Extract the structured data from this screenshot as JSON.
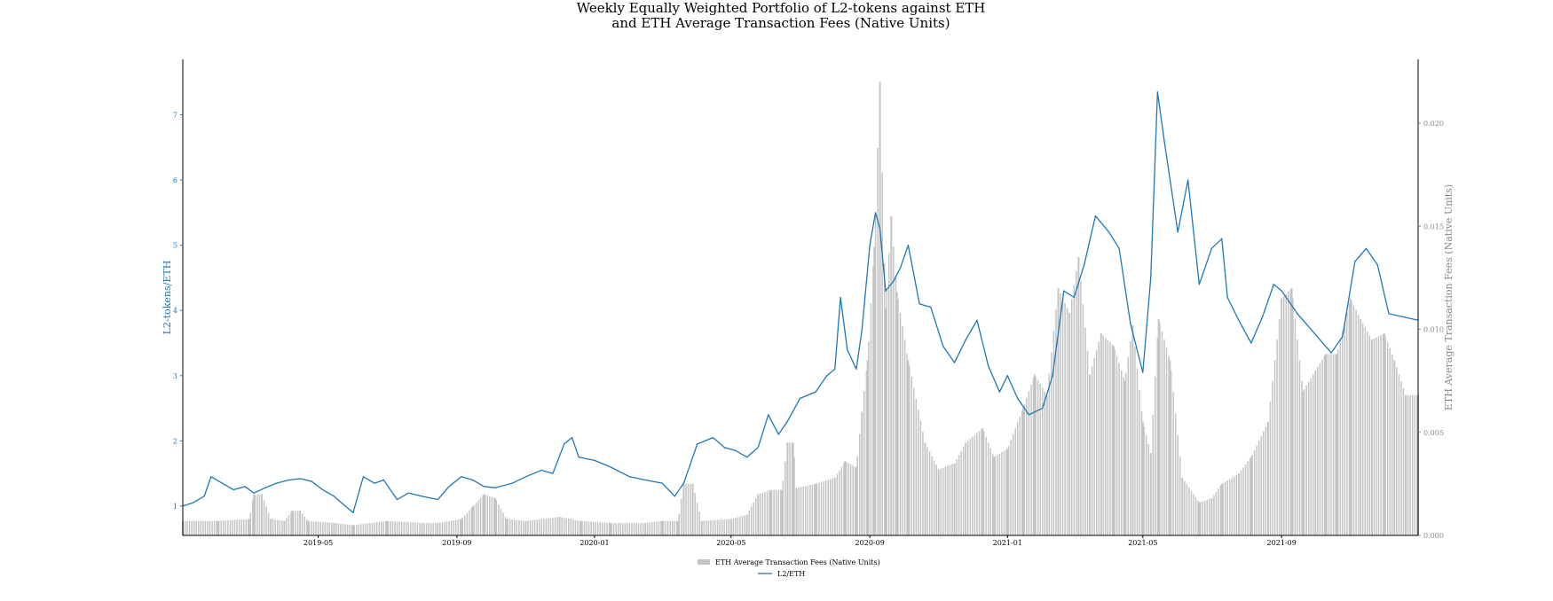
{
  "chart_data": {
    "type": "bar+line",
    "title_lines": [
      "Weekly Equally Weighted Portfolio of L2-tokens against ETH",
      "and ETH Average Transaction Fees (Native Units)"
    ],
    "ylabel_left": "L2-tokens/ETH",
    "ylabel_right": "ETH Average Transaction Fees (Native Units)",
    "x_range": [
      "2019-01-01",
      "2021-12-31"
    ],
    "ylim_left": [
      0.55,
      7.85
    ],
    "ylim_right": [
      0.0,
      0.0231
    ],
    "left_ticks": [
      "1",
      "2",
      "3",
      "4",
      "5",
      "6",
      "7"
    ],
    "right_ticks": [
      "0.000",
      "0.005",
      "0.010",
      "0.015",
      "0.020"
    ],
    "x_ticks": [
      {
        "date": "2019-05-01",
        "label": "2019-05"
      },
      {
        "date": "2019-09-01",
        "label": "2019-09"
      },
      {
        "date": "2020-01-01",
        "label": "2020-01"
      },
      {
        "date": "2020-05-01",
        "label": "2020-05"
      },
      {
        "date": "2020-09-01",
        "label": "2020-09"
      },
      {
        "date": "2021-01-01",
        "label": "2021-01"
      },
      {
        "date": "2021-05-01",
        "label": "2021-05"
      },
      {
        "date": "2021-09-01",
        "label": "2021-09"
      }
    ],
    "legend": {
      "placement": "bottom-center",
      "entries": [
        "ETH Average Transaction Fees (Native Units)",
        "L2/ETH"
      ]
    },
    "grid": false,
    "series": [
      {
        "name": "L2/ETH",
        "kind": "line",
        "axis": "left",
        "color": "#1f77b4",
        "points": [
          [
            "2019-01-01",
            1.0
          ],
          [
            "2019-01-10",
            1.05
          ],
          [
            "2019-01-20",
            1.15
          ],
          [
            "2019-01-26",
            1.45
          ],
          [
            "2019-02-05",
            1.35
          ],
          [
            "2019-02-15",
            1.25
          ],
          [
            "2019-02-25",
            1.3
          ],
          [
            "2019-03-05",
            1.2
          ],
          [
            "2019-03-15",
            1.28
          ],
          [
            "2019-03-25",
            1.35
          ],
          [
            "2019-04-05",
            1.4
          ],
          [
            "2019-04-15",
            1.42
          ],
          [
            "2019-04-25",
            1.38
          ],
          [
            "2019-05-05",
            1.25
          ],
          [
            "2019-05-15",
            1.15
          ],
          [
            "2019-05-25",
            1.0
          ],
          [
            "2019-06-01",
            0.9
          ],
          [
            "2019-06-10",
            1.45
          ],
          [
            "2019-06-20",
            1.35
          ],
          [
            "2019-06-28",
            1.4
          ],
          [
            "2019-07-10",
            1.1
          ],
          [
            "2019-07-20",
            1.2
          ],
          [
            "2019-08-01",
            1.15
          ],
          [
            "2019-08-15",
            1.1
          ],
          [
            "2019-08-25",
            1.3
          ],
          [
            "2019-09-05",
            1.45
          ],
          [
            "2019-09-15",
            1.4
          ],
          [
            "2019-09-25",
            1.3
          ],
          [
            "2019-10-05",
            1.28
          ],
          [
            "2019-10-20",
            1.35
          ],
          [
            "2019-11-01",
            1.45
          ],
          [
            "2019-11-15",
            1.55
          ],
          [
            "2019-11-25",
            1.5
          ],
          [
            "2019-12-05",
            1.95
          ],
          [
            "2019-12-12",
            2.05
          ],
          [
            "2019-12-18",
            1.75
          ],
          [
            "2020-01-01",
            1.7
          ],
          [
            "2020-01-15",
            1.6
          ],
          [
            "2020-02-01",
            1.45
          ],
          [
            "2020-02-15",
            1.4
          ],
          [
            "2020-03-01",
            1.35
          ],
          [
            "2020-03-12",
            1.15
          ],
          [
            "2020-03-20",
            1.35
          ],
          [
            "2020-04-01",
            1.95
          ],
          [
            "2020-04-15",
            2.05
          ],
          [
            "2020-04-25",
            1.9
          ],
          [
            "2020-05-05",
            1.85
          ],
          [
            "2020-05-15",
            1.75
          ],
          [
            "2020-05-25",
            1.9
          ],
          [
            "2020-06-03",
            2.4
          ],
          [
            "2020-06-12",
            2.1
          ],
          [
            "2020-06-20",
            2.3
          ],
          [
            "2020-07-01",
            2.65
          ],
          [
            "2020-07-15",
            2.75
          ],
          [
            "2020-07-25",
            3.0
          ],
          [
            "2020-08-01",
            3.1
          ],
          [
            "2020-08-06",
            4.2
          ],
          [
            "2020-08-12",
            3.4
          ],
          [
            "2020-08-20",
            3.1
          ],
          [
            "2020-08-25",
            3.7
          ],
          [
            "2020-09-01",
            5.0
          ],
          [
            "2020-09-06",
            5.5
          ],
          [
            "2020-09-10",
            5.25
          ],
          [
            "2020-09-15",
            4.3
          ],
          [
            "2020-09-22",
            4.45
          ],
          [
            "2020-09-28",
            4.65
          ],
          [
            "2020-10-05",
            5.0
          ],
          [
            "2020-10-15",
            4.1
          ],
          [
            "2020-10-25",
            4.05
          ],
          [
            "2020-11-05",
            3.45
          ],
          [
            "2020-11-15",
            3.2
          ],
          [
            "2020-11-25",
            3.55
          ],
          [
            "2020-12-05",
            3.85
          ],
          [
            "2020-12-15",
            3.15
          ],
          [
            "2020-12-25",
            2.75
          ],
          [
            "2021-01-01",
            3.0
          ],
          [
            "2021-01-10",
            2.65
          ],
          [
            "2021-01-20",
            2.4
          ],
          [
            "2021-02-01",
            2.5
          ],
          [
            "2021-02-10",
            3.0
          ],
          [
            "2021-02-20",
            4.3
          ],
          [
            "2021-03-01",
            4.2
          ],
          [
            "2021-03-10",
            4.7
          ],
          [
            "2021-03-20",
            5.45
          ],
          [
            "2021-04-01",
            5.2
          ],
          [
            "2021-04-10",
            4.95
          ],
          [
            "2021-04-20",
            3.8
          ],
          [
            "2021-05-01",
            3.05
          ],
          [
            "2021-05-08",
            4.5
          ],
          [
            "2021-05-14",
            7.35
          ],
          [
            "2021-05-20",
            6.6
          ],
          [
            "2021-06-01",
            5.2
          ],
          [
            "2021-06-10",
            6.0
          ],
          [
            "2021-06-20",
            4.4
          ],
          [
            "2021-07-01",
            4.95
          ],
          [
            "2021-07-10",
            5.1
          ],
          [
            "2021-07-15",
            4.2
          ],
          [
            "2021-07-25",
            3.85
          ],
          [
            "2021-08-05",
            3.5
          ],
          [
            "2021-08-15",
            3.9
          ],
          [
            "2021-08-25",
            4.4
          ],
          [
            "2021-09-01",
            4.3
          ],
          [
            "2021-09-15",
            3.95
          ],
          [
            "2021-09-25",
            3.75
          ],
          [
            "2021-10-05",
            3.55
          ],
          [
            "2021-10-15",
            3.35
          ],
          [
            "2021-10-25",
            3.6
          ],
          [
            "2021-11-05",
            4.75
          ],
          [
            "2021-11-15",
            4.95
          ],
          [
            "2021-11-25",
            4.7
          ],
          [
            "2021-12-05",
            3.95
          ],
          [
            "2021-12-31",
            3.85
          ]
        ]
      },
      {
        "name": "ETH Average Transaction Fees (Native Units)",
        "kind": "bar",
        "axis": "right",
        "color": "#c4c4c4",
        "points": [
          [
            "2019-01-01",
            0.0007
          ],
          [
            "2019-02-01",
            0.0007
          ],
          [
            "2019-03-01",
            0.0008
          ],
          [
            "2019-03-05",
            0.002
          ],
          [
            "2019-03-12",
            0.002
          ],
          [
            "2019-03-20",
            0.0008
          ],
          [
            "2019-04-01",
            0.0007
          ],
          [
            "2019-04-08",
            0.0012
          ],
          [
            "2019-04-15",
            0.0012
          ],
          [
            "2019-04-22",
            0.0007
          ],
          [
            "2019-05-15",
            0.0006
          ],
          [
            "2019-06-01",
            0.0005
          ],
          [
            "2019-07-01",
            0.0007
          ],
          [
            "2019-08-01",
            0.0006
          ],
          [
            "2019-08-15",
            0.0006
          ],
          [
            "2019-09-05",
            0.0008
          ],
          [
            "2019-09-15",
            0.0014
          ],
          [
            "2019-09-25",
            0.002
          ],
          [
            "2019-10-05",
            0.0018
          ],
          [
            "2019-10-15",
            0.0008
          ],
          [
            "2019-11-01",
            0.0007
          ],
          [
            "2019-12-01",
            0.0009
          ],
          [
            "2019-12-20",
            0.0007
          ],
          [
            "2020-01-15",
            0.0006
          ],
          [
            "2020-02-15",
            0.0006
          ],
          [
            "2020-03-01",
            0.0007
          ],
          [
            "2020-03-15",
            0.0007
          ],
          [
            "2020-03-20",
            0.0025
          ],
          [
            "2020-03-28",
            0.0025
          ],
          [
            "2020-04-05",
            0.0007
          ],
          [
            "2020-05-01",
            0.0008
          ],
          [
            "2020-05-15",
            0.001
          ],
          [
            "2020-05-25",
            0.002
          ],
          [
            "2020-06-05",
            0.0022
          ],
          [
            "2020-06-15",
            0.0022
          ],
          [
            "2020-06-20",
            0.0045
          ],
          [
            "2020-06-25",
            0.0045
          ],
          [
            "2020-06-28",
            0.0023
          ],
          [
            "2020-07-15",
            0.0025
          ],
          [
            "2020-08-01",
            0.0028
          ],
          [
            "2020-08-10",
            0.0036
          ],
          [
            "2020-08-20",
            0.0033
          ],
          [
            "2020-08-25",
            0.006
          ],
          [
            "2020-08-30",
            0.0085
          ],
          [
            "2020-09-05",
            0.014
          ],
          [
            "2020-09-10",
            0.022
          ],
          [
            "2020-09-15",
            0.011
          ],
          [
            "2020-09-20",
            0.0155
          ],
          [
            "2020-09-25",
            0.0118
          ],
          [
            "2020-10-05",
            0.0085
          ],
          [
            "2020-10-20",
            0.0045
          ],
          [
            "2020-11-01",
            0.0032
          ],
          [
            "2020-11-15",
            0.0035
          ],
          [
            "2020-11-25",
            0.0045
          ],
          [
            "2020-12-10",
            0.0052
          ],
          [
            "2020-12-20",
            0.0038
          ],
          [
            "2021-01-01",
            0.0042
          ],
          [
            "2021-01-15",
            0.0062
          ],
          [
            "2021-01-25",
            0.0078
          ],
          [
            "2021-02-05",
            0.0068
          ],
          [
            "2021-02-15",
            0.012
          ],
          [
            "2021-02-25",
            0.0108
          ],
          [
            "2021-03-05",
            0.0135
          ],
          [
            "2021-03-15",
            0.0078
          ],
          [
            "2021-03-25",
            0.0098
          ],
          [
            "2021-04-05",
            0.0092
          ],
          [
            "2021-04-15",
            0.0075
          ],
          [
            "2021-04-22",
            0.0102
          ],
          [
            "2021-05-01",
            0.0055
          ],
          [
            "2021-05-08",
            0.004
          ],
          [
            "2021-05-15",
            0.0105
          ],
          [
            "2021-05-25",
            0.0085
          ],
          [
            "2021-06-05",
            0.0028
          ],
          [
            "2021-06-20",
            0.0016
          ],
          [
            "2021-07-01",
            0.0018
          ],
          [
            "2021-07-10",
            0.0025
          ],
          [
            "2021-07-25",
            0.003
          ],
          [
            "2021-08-05",
            0.0038
          ],
          [
            "2021-08-20",
            0.0055
          ],
          [
            "2021-09-01",
            0.0115
          ],
          [
            "2021-09-10",
            0.012
          ],
          [
            "2021-09-20",
            0.007
          ],
          [
            "2021-10-01",
            0.008
          ],
          [
            "2021-10-10",
            0.0088
          ],
          [
            "2021-10-20",
            0.0088
          ],
          [
            "2021-11-01",
            0.0115
          ],
          [
            "2021-11-10",
            0.0105
          ],
          [
            "2021-11-20",
            0.0095
          ],
          [
            "2021-12-01",
            0.0098
          ],
          [
            "2021-12-10",
            0.0085
          ],
          [
            "2021-12-20",
            0.0068
          ],
          [
            "2021-12-31",
            0.0068
          ]
        ]
      }
    ]
  }
}
